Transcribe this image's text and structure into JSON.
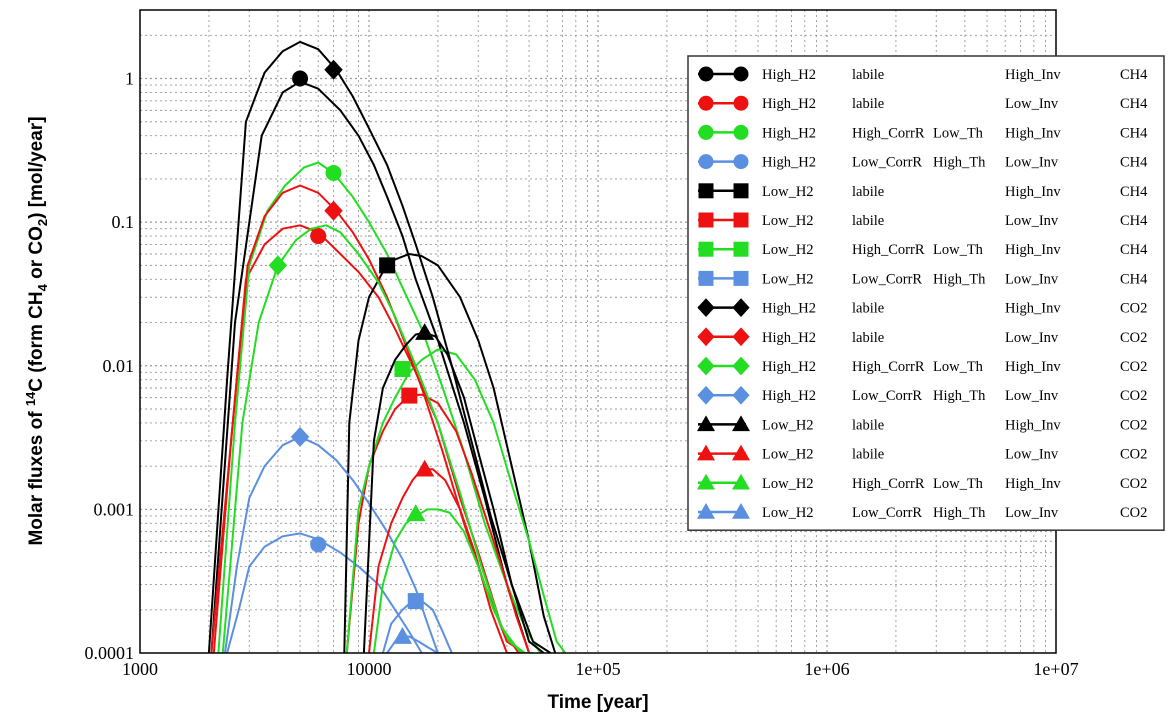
{
  "chart_data": {
    "type": "line",
    "xlabel": "Time [year]",
    "ylabel_parts": [
      "Molar fluxes of ",
      "14",
      "C (form CH",
      "4",
      " or CO",
      "2",
      ") [mol/year]"
    ],
    "x_scale": "log",
    "y_scale": "log",
    "xlim": [
      1000,
      10000000
    ],
    "ylim": [
      0.0001,
      3
    ],
    "x_ticks": [
      1000,
      10000,
      100000,
      1000000,
      10000000
    ],
    "x_tick_labels": [
      "1000",
      "10000",
      "1e+05",
      "1e+06",
      "1e+07"
    ],
    "y_ticks": [
      0.0001,
      0.001,
      0.01,
      0.1,
      1
    ],
    "y_tick_labels": [
      "0.0001",
      "0.001",
      "0.01",
      "0.1",
      "1"
    ],
    "grid": true,
    "legend_position": "top-right",
    "series": [
      {
        "name": [
          "High_H2",
          "labile",
          "",
          "High_Inv",
          "CH4"
        ],
        "color": "#000000",
        "marker": "circle",
        "x": [
          2050,
          2600,
          3400,
          4200,
          5000,
          6000,
          7500,
          9000,
          10500,
          12000,
          14000,
          16000,
          20000,
          26000,
          32000,
          40000,
          50000
        ],
        "y": [
          0.0001,
          0.02,
          0.4,
          0.8,
          0.95,
          0.85,
          0.6,
          0.4,
          0.25,
          0.15,
          0.08,
          0.04,
          0.015,
          0.004,
          0.0012,
          0.0003,
          0.0001
        ],
        "marker_points": [
          [
            5000,
            1.0
          ]
        ]
      },
      {
        "name": [
          "High_H2",
          "labile",
          "",
          "Low_Inv",
          "CH4"
        ],
        "color": "#ee1111",
        "marker": "circle",
        "x": [
          2100,
          2500,
          2900,
          3500,
          4200,
          5000,
          6000,
          7500,
          9000,
          11000,
          13000,
          16000,
          20000,
          25000,
          30000,
          38000,
          45000
        ],
        "y": [
          0.0001,
          0.003,
          0.04,
          0.07,
          0.09,
          0.095,
          0.085,
          0.06,
          0.045,
          0.03,
          0.018,
          0.009,
          0.004,
          0.0012,
          0.0005,
          0.00015,
          0.0001
        ],
        "marker_points": [
          [
            6000,
            0.08
          ]
        ]
      },
      {
        "name": [
          "High_H2",
          "High_CorrR",
          "Low_Th",
          "High_Inv",
          "CH4"
        ],
        "color": "#22dd22",
        "marker": "circle",
        "x": [
          2200,
          2600,
          3000,
          3600,
          4300,
          5200,
          6000,
          7000,
          8500,
          10000,
          12000,
          14000,
          17000,
          21000,
          26000,
          32000,
          40000,
          48000,
          56000
        ],
        "y": [
          0.0001,
          0.004,
          0.05,
          0.12,
          0.18,
          0.24,
          0.26,
          0.22,
          0.15,
          0.1,
          0.06,
          0.035,
          0.018,
          0.007,
          0.0025,
          0.0008,
          0.0003,
          0.00015,
          0.0001
        ],
        "marker_points": [
          [
            7000,
            0.22
          ]
        ]
      },
      {
        "name": [
          "High_H2",
          "Low_CorrR",
          "High_Th",
          "Low_Inv",
          "CH4"
        ],
        "color": "#5b8fe0",
        "marker": "circle",
        "x": [
          2400,
          2700,
          3000,
          3500,
          4200,
          5000,
          6000,
          7500,
          9000,
          11000,
          13000,
          15000,
          17000
        ],
        "y": [
          0.0001,
          0.0002,
          0.0004,
          0.00055,
          0.00065,
          0.00068,
          0.00062,
          0.0005,
          0.0004,
          0.0003,
          0.0002,
          0.00014,
          0.0001
        ],
        "marker_points": [
          [
            6000,
            0.00057
          ]
        ]
      },
      {
        "name": [
          "Low_H2",
          "labile",
          "",
          "High_Inv",
          "CH4"
        ],
        "color": "#000000",
        "marker": "square",
        "x": [
          7800,
          8200,
          9000,
          10000,
          11500,
          13000,
          15000,
          17000,
          20000,
          25000,
          30000,
          35000,
          42000,
          50000,
          58000,
          65000
        ],
        "y": [
          0.0001,
          0.004,
          0.015,
          0.03,
          0.045,
          0.055,
          0.06,
          0.058,
          0.05,
          0.03,
          0.015,
          0.007,
          0.002,
          0.0006,
          0.00018,
          0.0001
        ],
        "marker_points": [
          [
            12000,
            0.05
          ]
        ]
      },
      {
        "name": [
          "Low_H2",
          "labile",
          "",
          "Low_Inv",
          "CH4"
        ],
        "color": "#ee1111",
        "marker": "square",
        "x": [
          8000,
          9000,
          10000,
          11500,
          13000,
          15000,
          17000,
          20000,
          24000,
          28000,
          33000,
          38000,
          44000,
          50000
        ],
        "y": [
          0.0001,
          0.0008,
          0.002,
          0.0035,
          0.005,
          0.0062,
          0.0063,
          0.0055,
          0.0035,
          0.0018,
          0.0008,
          0.0004,
          0.00018,
          0.0001
        ],
        "marker_points": [
          [
            15000,
            0.0062
          ]
        ]
      },
      {
        "name": [
          "Low_H2",
          "High_CorrR",
          "Low_Th",
          "High_Inv",
          "CH4"
        ],
        "color": "#22dd22",
        "marker": "square",
        "x": [
          8000,
          9000,
          10000,
          11500,
          13000,
          15000,
          17000,
          20000,
          24000,
          29000,
          35000,
          42000,
          50000,
          58000,
          66000,
          72000
        ],
        "y": [
          0.0001,
          0.001,
          0.002,
          0.004,
          0.006,
          0.009,
          0.011,
          0.013,
          0.012,
          0.008,
          0.004,
          0.0015,
          0.0006,
          0.00025,
          0.00012,
          0.0001
        ],
        "marker_points": [
          [
            14000,
            0.0095
          ]
        ]
      },
      {
        "name": [
          "Low_H2",
          "Low_CorrR",
          "High_Th",
          "Low_Inv",
          "CH4"
        ],
        "color": "#5b8fe0",
        "marker": "square",
        "x": [
          11500,
          12500,
          14000,
          15500,
          17000,
          19000,
          21000,
          23000
        ],
        "y": [
          0.0001,
          0.00016,
          0.0002,
          0.00023,
          0.00023,
          0.0002,
          0.00014,
          0.0001
        ],
        "marker_points": [
          [
            16000,
            0.00023
          ]
        ]
      },
      {
        "name": [
          "High_H2",
          "labile",
          "",
          "High_Inv",
          "CO2"
        ],
        "color": "#000000",
        "marker": "diamond",
        "x": [
          2000,
          2400,
          2900,
          3500,
          4200,
          5000,
          6000,
          7200,
          8500,
          10000,
          12000,
          14000,
          16000,
          19000,
          23000,
          28000,
          34000,
          42000,
          52000,
          62000
        ],
        "y": [
          0.0001,
          0.008,
          0.5,
          1.1,
          1.55,
          1.8,
          1.6,
          1.15,
          0.75,
          0.45,
          0.25,
          0.13,
          0.07,
          0.03,
          0.01,
          0.003,
          0.0009,
          0.0003,
          0.00012,
          0.0001
        ],
        "marker_points": [
          [
            7000,
            1.15
          ]
        ]
      },
      {
        "name": [
          "High_H2",
          "labile",
          "",
          "Low_Inv",
          "CO2"
        ],
        "color": "#ee1111",
        "marker": "diamond",
        "x": [
          2050,
          2500,
          2950,
          3500,
          4200,
          5000,
          6000,
          7200,
          8500,
          10000,
          12000,
          14000,
          17000,
          21000,
          26000,
          32000,
          40000,
          48000
        ],
        "y": [
          0.0001,
          0.003,
          0.05,
          0.11,
          0.16,
          0.18,
          0.16,
          0.12,
          0.085,
          0.055,
          0.03,
          0.016,
          0.007,
          0.0025,
          0.0008,
          0.0003,
          0.00012,
          0.0001
        ],
        "marker_points": [
          [
            7000,
            0.12
          ]
        ]
      },
      {
        "name": [
          "High_H2",
          "High_CorrR",
          "Low_Th",
          "High_Inv",
          "CO2"
        ],
        "color": "#22dd22",
        "marker": "diamond",
        "x": [
          2300,
          2800,
          3300,
          4000,
          4800,
          5600,
          6500,
          7500,
          9000,
          11000,
          13000,
          16000,
          20000,
          25000,
          31000,
          38000,
          46000
        ],
        "y": [
          0.0001,
          0.004,
          0.02,
          0.05,
          0.075,
          0.09,
          0.095,
          0.085,
          0.06,
          0.038,
          0.022,
          0.01,
          0.004,
          0.0013,
          0.0004,
          0.00015,
          0.0001
        ],
        "marker_points": [
          [
            4000,
            0.05
          ]
        ]
      },
      {
        "name": [
          "High_H2",
          "Low_CorrR",
          "High_Th",
          "Low_Inv",
          "CO2"
        ],
        "color": "#5b8fe0",
        "marker": "diamond",
        "x": [
          2350,
          2650,
          3000,
          3500,
          4200,
          5000,
          6000,
          7200,
          8500,
          10000,
          12000,
          14000,
          16000,
          18000,
          20000
        ],
        "y": [
          0.0001,
          0.0004,
          0.0012,
          0.002,
          0.0028,
          0.0032,
          0.0028,
          0.0022,
          0.0016,
          0.0011,
          0.0007,
          0.00045,
          0.00028,
          0.00016,
          0.0001
        ],
        "marker_points": [
          [
            5000,
            0.0032
          ]
        ]
      },
      {
        "name": [
          "Low_H2",
          "labile",
          "",
          "High_Inv",
          "CO2"
        ],
        "color": "#000000",
        "marker": "triangle",
        "x": [
          9500,
          10500,
          11500,
          13000,
          14500,
          16000,
          17500,
          19500,
          22000,
          26000,
          30000,
          35000,
          42000,
          50000,
          58000
        ],
        "y": [
          0.0001,
          0.003,
          0.007,
          0.011,
          0.014,
          0.0165,
          0.017,
          0.016,
          0.012,
          0.006,
          0.0025,
          0.001,
          0.0003,
          0.00012,
          0.0001
        ],
        "marker_points": [
          [
            17500,
            0.017
          ]
        ]
      },
      {
        "name": [
          "Low_H2",
          "labile",
          "",
          "Low_Inv",
          "CO2"
        ],
        "color": "#ee1111",
        "marker": "triangle",
        "x": [
          10000,
          11000,
          12500,
          14000,
          15500,
          17000,
          19000,
          21500,
          25000,
          29000,
          34000,
          40000,
          46000
        ],
        "y": [
          0.0001,
          0.0004,
          0.0008,
          0.0012,
          0.0016,
          0.0019,
          0.0019,
          0.0016,
          0.001,
          0.0005,
          0.0002,
          0.0001,
          0.0001
        ],
        "marker_points": [
          [
            17500,
            0.0019
          ]
        ]
      },
      {
        "name": [
          "Low_H2",
          "High_CorrR",
          "Low_Th",
          "High_Inv",
          "CO2"
        ],
        "color": "#22dd22",
        "marker": "triangle",
        "x": [
          10500,
          11500,
          13000,
          14500,
          16000,
          18000,
          20000,
          22500,
          26000,
          30000,
          35000,
          41000,
          48000,
          52000
        ],
        "y": [
          0.0001,
          0.0003,
          0.0006,
          0.0008,
          0.0009,
          0.001,
          0.001,
          0.00095,
          0.0007,
          0.0004,
          0.0002,
          0.00012,
          0.0001,
          0.0001
        ],
        "marker_points": [
          [
            16000,
            0.00093
          ]
        ]
      },
      {
        "name": [
          "Low_H2",
          "Low_CorrR",
          "High_Th",
          "Low_Inv",
          "CO2"
        ],
        "color": "#5b8fe0",
        "marker": "triangle",
        "x": [
          12000,
          13000,
          14000,
          15000,
          16500,
          18000,
          20000,
          22000
        ],
        "y": [
          0.0001,
          0.00012,
          0.00013,
          0.00013,
          0.00012,
          0.00011,
          0.0001,
          0.0001
        ],
        "marker_points": [
          [
            14000,
            0.00013
          ]
        ]
      }
    ]
  }
}
